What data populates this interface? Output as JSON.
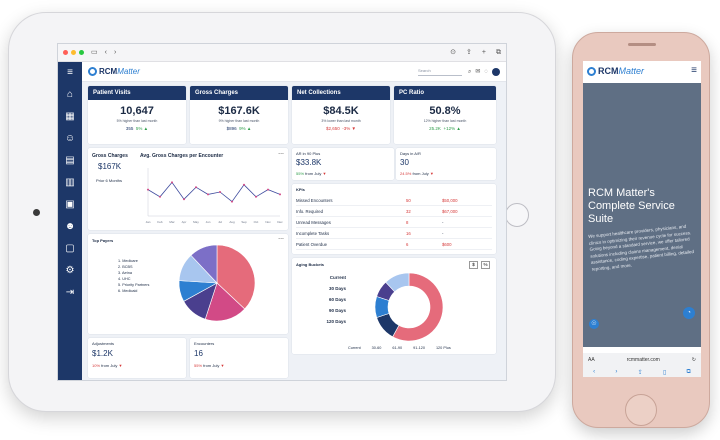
{
  "dashboard": {
    "brand": {
      "name_main": "RCM",
      "name_accent": "Matter"
    },
    "search_placeholder": "Search",
    "kpis": [
      {
        "title": "Patient Visits",
        "value": "10,647",
        "subtitle": "5% higher than last month",
        "footer_value": "355",
        "footer_pct": "5%",
        "trend": "up"
      },
      {
        "title": "Gross Charges",
        "value": "$167.6K",
        "subtitle": "9% higher than last month",
        "footer_value": "$896",
        "footer_pct": "9%",
        "trend": "up"
      },
      {
        "title": "Net Collections",
        "value": "$84.5K",
        "subtitle": "3% lower than last month",
        "footer_value": "$2,650",
        "footer_pct": "-3%",
        "trend": "down"
      },
      {
        "title": "PC Ratio",
        "value": "50.8%",
        "subtitle": "12% higher than last month",
        "footer_value": "25.2K",
        "footer_pct": "+12%",
        "trend": "up"
      }
    ],
    "gross_charges_panel": {
      "label": "Gross Charges",
      "value": "$167K",
      "prior_label": "Prior 6 Months",
      "chart_title": "Avg. Gross Charges per Encounter",
      "more": "..."
    },
    "ar_90": {
      "label": "AR in 90 Plus",
      "value": "$33.8K",
      "change": "55%",
      "change_text": "from July"
    },
    "days_ar": {
      "label": "Days in A/R",
      "value": "30",
      "change": "24.5%",
      "change_text": "from July"
    },
    "kpi_table": {
      "title": "KPIs",
      "rows": [
        {
          "label": "Missed Encounters",
          "count": "50",
          "amount": "$50,000"
        },
        {
          "label": "Info. Required",
          "count": "32",
          "amount": "$67,000"
        },
        {
          "label": "Unread Messages",
          "count": "8",
          "amount": "-"
        },
        {
          "label": "Incomplete Tasks",
          "count": "16",
          "amount": "-"
        },
        {
          "label": "Patient Overdue",
          "count": "6",
          "amount": "$600"
        }
      ]
    },
    "top_payers": {
      "title": "Top Payers",
      "legend": [
        "1. Medicare",
        "2. BCBS",
        "3. Aetna",
        "4. UHC",
        "5. Priority Partners",
        "6. Medicaid"
      ],
      "more": "..."
    },
    "aging": {
      "title": "Aging Buckets",
      "buckets": [
        "Current",
        "30 Days",
        "60 Days",
        "90 Days",
        "120 Days"
      ],
      "footer": [
        "Current",
        "30-60",
        "61-90",
        "91-120",
        "120 Plus"
      ],
      "toggle_a": "$",
      "toggle_b": "%"
    },
    "adjustments": {
      "label": "Adjustments",
      "value": "$1.2K",
      "change": "10%",
      "change_text": "from July"
    },
    "encounters": {
      "label": "Encounters",
      "value": "16",
      "change": "55%",
      "change_text": "from July"
    }
  },
  "phone": {
    "brand": {
      "name_main": "RCM",
      "name_accent": "Matter"
    },
    "headline": "RCM Matter's Complete Service Suite",
    "body": "We support healthcare providers, physicians, and clinics in optimizing their revenue cycle for success. Going beyond a standard service, we offer tailored solutions including claims management, denial assistance, coding expertise, patient billing, detailed reporting, and more.",
    "url": "rcmmatter.com",
    "url_prefix": "AA"
  },
  "chart_data": [
    {
      "type": "line",
      "title": "Avg. Gross Charges per Encounter",
      "x": [
        "Jan",
        "Feb",
        "Mar",
        "Apr",
        "May",
        "Jun",
        "Jul",
        "Aug",
        "Sep",
        "Oct",
        "Nov",
        "Dec"
      ],
      "values": [
        55,
        40,
        70,
        35,
        60,
        45,
        50,
        30,
        65,
        40,
        55,
        45
      ],
      "ylim": [
        0,
        100
      ]
    },
    {
      "type": "pie",
      "labels": [
        "Medicare",
        "BCBS",
        "Aetna",
        "UHC",
        "Priority Partners",
        "Medicaid"
      ],
      "values": [
        37,
        18,
        12,
        9,
        12,
        12
      ],
      "colors": [
        "#e56b7b",
        "#d24a86",
        "#4a3f8e",
        "#2d7fd1",
        "#a8c6ef",
        "#7c6fc7"
      ]
    },
    {
      "type": "pie",
      "labels": [
        "Current",
        "30-60",
        "61-90",
        "91-120",
        "120 Plus"
      ],
      "values": [
        58,
        12,
        10,
        8,
        12
      ],
      "colors": [
        "#e56b7b",
        "#1d3768",
        "#2d7fd1",
        "#4a3f8e",
        "#a8c6ef"
      ]
    }
  ]
}
